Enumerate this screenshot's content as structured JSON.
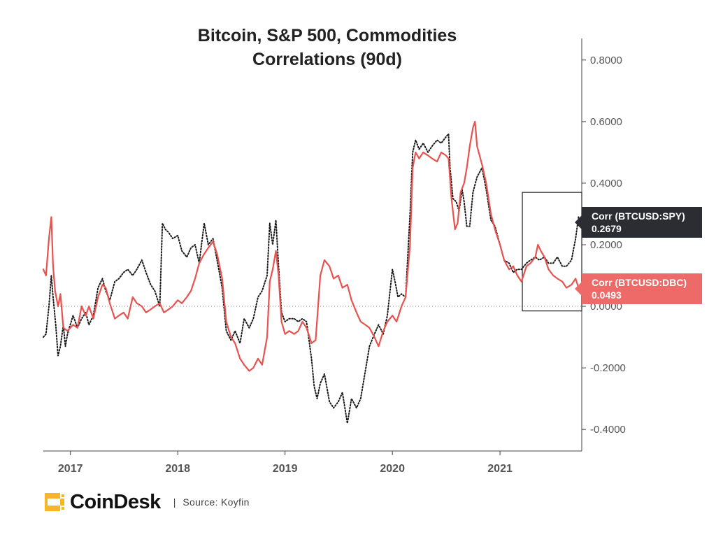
{
  "brand": {
    "name": "CoinDesk",
    "separator": "|",
    "source": "Source: Koyfin",
    "accent": "#f7b52c"
  },
  "chart_data": {
    "type": "line",
    "title_line1": "Bitcoin, S&P 500, Commodities",
    "title_line2": "Correlations (90d)",
    "xlabel": "",
    "ylabel": "",
    "x_range": [
      "2016-10-01",
      "2021-10-06"
    ],
    "ylim": [
      -0.47,
      0.87
    ],
    "y_ticks": [
      "0.8000",
      "0.6000",
      "0.4000",
      "0.2000",
      "0.0000",
      "-0.2000",
      "-0.4000"
    ],
    "x_ticks": [
      "2017",
      "2018",
      "2019",
      "2020",
      "2021"
    ],
    "grid": false,
    "zero_line": "dotted",
    "highlight_box": {
      "x_start": "2021-03-18",
      "x_end": "2021-10-06",
      "y_low": -0.015,
      "y_high": 0.37
    },
    "series": [
      {
        "name": "Corr (BTCUSD:SPY)",
        "color": "#1a1a1a",
        "style": "dotted",
        "last_value": "0.2679",
        "points": [
          [
            "2016-10-01",
            -0.1
          ],
          [
            "2016-10-10",
            -0.09
          ],
          [
            "2016-10-20",
            0.0
          ],
          [
            "2016-10-28",
            0.1
          ],
          [
            "2016-11-03",
            0.03
          ],
          [
            "2016-11-12",
            -0.06
          ],
          [
            "2016-11-20",
            -0.16
          ],
          [
            "2016-11-28",
            -0.13
          ],
          [
            "2016-12-08",
            -0.06
          ],
          [
            "2016-12-15",
            -0.13
          ],
          [
            "2016-12-22",
            -0.09
          ],
          [
            "2017-01-10",
            -0.03
          ],
          [
            "2017-01-25",
            -0.07
          ],
          [
            "2017-02-08",
            -0.04
          ],
          [
            "2017-02-22",
            -0.02
          ],
          [
            "2017-03-05",
            -0.06
          ],
          [
            "2017-03-20",
            -0.03
          ],
          [
            "2017-04-05",
            0.06
          ],
          [
            "2017-04-20",
            0.09
          ],
          [
            "2017-05-01",
            0.05
          ],
          [
            "2017-05-15",
            0.02
          ],
          [
            "2017-06-01",
            0.08
          ],
          [
            "2017-06-15",
            0.09
          ],
          [
            "2017-07-01",
            0.11
          ],
          [
            "2017-07-15",
            0.12
          ],
          [
            "2017-08-01",
            0.1
          ],
          [
            "2017-08-15",
            0.12
          ],
          [
            "2017-09-01",
            0.15
          ],
          [
            "2017-09-15",
            0.11
          ],
          [
            "2017-10-01",
            0.07
          ],
          [
            "2017-10-15",
            0.05
          ],
          [
            "2017-11-01",
            0.0
          ],
          [
            "2017-11-10",
            0.27
          ],
          [
            "2017-11-20",
            0.25
          ],
          [
            "2017-12-01",
            0.24
          ],
          [
            "2017-12-15",
            0.22
          ],
          [
            "2018-01-01",
            0.23
          ],
          [
            "2018-01-15",
            0.18
          ],
          [
            "2018-02-01",
            0.16
          ],
          [
            "2018-02-15",
            0.19
          ],
          [
            "2018-03-01",
            0.2
          ],
          [
            "2018-03-15",
            0.14
          ],
          [
            "2018-04-01",
            0.27
          ],
          [
            "2018-04-15",
            0.2
          ],
          [
            "2018-05-01",
            0.22
          ],
          [
            "2018-05-15",
            0.15
          ],
          [
            "2018-06-01",
            0.06
          ],
          [
            "2018-06-15",
            -0.08
          ],
          [
            "2018-07-01",
            -0.11
          ],
          [
            "2018-07-15",
            -0.08
          ],
          [
            "2018-08-01",
            -0.12
          ],
          [
            "2018-08-15",
            -0.04
          ],
          [
            "2018-09-01",
            -0.07
          ],
          [
            "2018-09-15",
            -0.04
          ],
          [
            "2018-10-01",
            0.03
          ],
          [
            "2018-10-15",
            0.05
          ],
          [
            "2018-11-01",
            0.1
          ],
          [
            "2018-11-10",
            0.27
          ],
          [
            "2018-11-20",
            0.2
          ],
          [
            "2018-12-01",
            0.28
          ],
          [
            "2018-12-10",
            0.13
          ],
          [
            "2018-12-20",
            -0.02
          ],
          [
            "2019-01-01",
            -0.05
          ],
          [
            "2019-01-15",
            -0.04
          ],
          [
            "2019-02-01",
            -0.04
          ],
          [
            "2019-02-15",
            -0.05
          ],
          [
            "2019-03-01",
            -0.04
          ],
          [
            "2019-03-15",
            -0.05
          ],
          [
            "2019-04-01",
            -0.17
          ],
          [
            "2019-04-10",
            -0.26
          ],
          [
            "2019-04-20",
            -0.3
          ],
          [
            "2019-05-01",
            -0.25
          ],
          [
            "2019-05-15",
            -0.22
          ],
          [
            "2019-06-01",
            -0.31
          ],
          [
            "2019-06-15",
            -0.33
          ],
          [
            "2019-07-01",
            -0.31
          ],
          [
            "2019-07-15",
            -0.28
          ],
          [
            "2019-08-01",
            -0.38
          ],
          [
            "2019-08-15",
            -0.3
          ],
          [
            "2019-09-01",
            -0.33
          ],
          [
            "2019-09-15",
            -0.3
          ],
          [
            "2019-10-01",
            -0.21
          ],
          [
            "2019-10-15",
            -0.13
          ],
          [
            "2019-11-01",
            -0.09
          ],
          [
            "2019-11-15",
            -0.06
          ],
          [
            "2019-12-01",
            -0.09
          ],
          [
            "2019-12-15",
            -0.03
          ],
          [
            "2020-01-01",
            0.12
          ],
          [
            "2020-01-10",
            0.08
          ],
          [
            "2020-01-20",
            0.03
          ],
          [
            "2020-02-01",
            0.04
          ],
          [
            "2020-02-15",
            0.03
          ],
          [
            "2020-03-01",
            0.3
          ],
          [
            "2020-03-10",
            0.5
          ],
          [
            "2020-03-20",
            0.54
          ],
          [
            "2020-04-01",
            0.51
          ],
          [
            "2020-04-15",
            0.53
          ],
          [
            "2020-05-01",
            0.5
          ],
          [
            "2020-05-15",
            0.52
          ],
          [
            "2020-06-01",
            0.54
          ],
          [
            "2020-06-15",
            0.53
          ],
          [
            "2020-07-01",
            0.55
          ],
          [
            "2020-07-10",
            0.56
          ],
          [
            "2020-07-15",
            0.45
          ],
          [
            "2020-07-25",
            0.35
          ],
          [
            "2020-08-05",
            0.34
          ],
          [
            "2020-08-15",
            0.31
          ],
          [
            "2020-08-25",
            0.38
          ],
          [
            "2020-09-01",
            0.34
          ],
          [
            "2020-09-10",
            0.26
          ],
          [
            "2020-09-20",
            0.26
          ],
          [
            "2020-10-01",
            0.37
          ],
          [
            "2020-10-15",
            0.42
          ],
          [
            "2020-11-01",
            0.45
          ],
          [
            "2020-11-15",
            0.38
          ],
          [
            "2020-12-01",
            0.28
          ],
          [
            "2020-12-15",
            0.26
          ],
          [
            "2021-01-01",
            0.2
          ],
          [
            "2021-01-15",
            0.15
          ],
          [
            "2021-02-01",
            0.14
          ],
          [
            "2021-02-15",
            0.11
          ],
          [
            "2021-03-01",
            0.12
          ],
          [
            "2021-03-15",
            0.12
          ],
          [
            "2021-04-01",
            0.14
          ],
          [
            "2021-04-15",
            0.15
          ],
          [
            "2021-05-01",
            0.16
          ],
          [
            "2021-05-15",
            0.15
          ],
          [
            "2021-06-01",
            0.16
          ],
          [
            "2021-06-15",
            0.14
          ],
          [
            "2021-07-01",
            0.14
          ],
          [
            "2021-07-15",
            0.16
          ],
          [
            "2021-08-01",
            0.13
          ],
          [
            "2021-08-15",
            0.13
          ],
          [
            "2021-09-01",
            0.15
          ],
          [
            "2021-09-15",
            0.22
          ],
          [
            "2021-09-25",
            0.29
          ],
          [
            "2021-10-01",
            0.2679
          ]
        ]
      },
      {
        "name": "Corr (BTCUSD:DBC)",
        "color": "#e8524f",
        "style": "solid",
        "last_value": "0.0493",
        "points": [
          [
            "2016-10-01",
            0.12
          ],
          [
            "2016-10-10",
            0.1
          ],
          [
            "2016-10-20",
            0.22
          ],
          [
            "2016-10-28",
            0.29
          ],
          [
            "2016-11-03",
            0.13
          ],
          [
            "2016-11-10",
            0.05
          ],
          [
            "2016-11-20",
            0.0
          ],
          [
            "2016-11-28",
            0.04
          ],
          [
            "2016-12-08",
            -0.07
          ],
          [
            "2016-12-22",
            -0.08
          ],
          [
            "2017-01-10",
            -0.06
          ],
          [
            "2017-01-25",
            -0.07
          ],
          [
            "2017-02-08",
            0.0
          ],
          [
            "2017-02-22",
            -0.03
          ],
          [
            "2017-03-05",
            0.0
          ],
          [
            "2017-03-20",
            -0.04
          ],
          [
            "2017-04-05",
            0.03
          ],
          [
            "2017-04-20",
            0.07
          ],
          [
            "2017-05-01",
            0.06
          ],
          [
            "2017-05-15",
            0.01
          ],
          [
            "2017-06-01",
            -0.04
          ],
          [
            "2017-06-15",
            -0.03
          ],
          [
            "2017-07-01",
            -0.02
          ],
          [
            "2017-07-15",
            -0.04
          ],
          [
            "2017-08-01",
            0.03
          ],
          [
            "2017-08-15",
            0.01
          ],
          [
            "2017-09-01",
            0.0
          ],
          [
            "2017-09-15",
            -0.02
          ],
          [
            "2017-10-01",
            -0.01
          ],
          [
            "2017-10-15",
            0.0
          ],
          [
            "2017-11-01",
            0.01
          ],
          [
            "2017-11-15",
            -0.02
          ],
          [
            "2017-12-01",
            -0.01
          ],
          [
            "2017-12-15",
            0.0
          ],
          [
            "2018-01-01",
            0.02
          ],
          [
            "2018-01-15",
            0.01
          ],
          [
            "2018-02-01",
            0.03
          ],
          [
            "2018-02-15",
            0.05
          ],
          [
            "2018-03-01",
            0.09
          ],
          [
            "2018-03-15",
            0.14
          ],
          [
            "2018-04-01",
            0.17
          ],
          [
            "2018-04-15",
            0.19
          ],
          [
            "2018-05-01",
            0.21
          ],
          [
            "2018-05-15",
            0.17
          ],
          [
            "2018-06-01",
            0.09
          ],
          [
            "2018-06-15",
            -0.05
          ],
          [
            "2018-07-01",
            -0.1
          ],
          [
            "2018-07-15",
            -0.12
          ],
          [
            "2018-08-01",
            -0.17
          ],
          [
            "2018-08-15",
            -0.19
          ],
          [
            "2018-09-01",
            -0.21
          ],
          [
            "2018-09-15",
            -0.2
          ],
          [
            "2018-10-01",
            -0.17
          ],
          [
            "2018-10-15",
            -0.19
          ],
          [
            "2018-11-01",
            -0.1
          ],
          [
            "2018-11-10",
            0.08
          ],
          [
            "2018-11-20",
            0.12
          ],
          [
            "2018-12-01",
            0.18
          ],
          [
            "2018-12-10",
            0.1
          ],
          [
            "2018-12-20",
            -0.05
          ],
          [
            "2019-01-01",
            -0.09
          ],
          [
            "2019-01-15",
            -0.08
          ],
          [
            "2019-02-01",
            -0.09
          ],
          [
            "2019-02-15",
            -0.08
          ],
          [
            "2019-03-01",
            -0.05
          ],
          [
            "2019-03-15",
            -0.07
          ],
          [
            "2019-04-01",
            -0.12
          ],
          [
            "2019-04-15",
            -0.11
          ],
          [
            "2019-05-01",
            0.1
          ],
          [
            "2019-05-15",
            0.15
          ],
          [
            "2019-06-01",
            0.13
          ],
          [
            "2019-06-15",
            0.09
          ],
          [
            "2019-07-01",
            0.1
          ],
          [
            "2019-07-15",
            0.06
          ],
          [
            "2019-08-01",
            0.07
          ],
          [
            "2019-08-15",
            0.02
          ],
          [
            "2019-09-01",
            -0.02
          ],
          [
            "2019-09-15",
            -0.05
          ],
          [
            "2019-10-01",
            -0.06
          ],
          [
            "2019-10-15",
            -0.07
          ],
          [
            "2019-11-01",
            -0.1
          ],
          [
            "2019-11-15",
            -0.13
          ],
          [
            "2019-12-01",
            -0.08
          ],
          [
            "2019-12-15",
            -0.05
          ],
          [
            "2020-01-01",
            -0.03
          ],
          [
            "2020-01-15",
            -0.05
          ],
          [
            "2020-02-01",
            0.0
          ],
          [
            "2020-02-15",
            0.03
          ],
          [
            "2020-03-01",
            0.2
          ],
          [
            "2020-03-10",
            0.45
          ],
          [
            "2020-03-20",
            0.5
          ],
          [
            "2020-04-01",
            0.48
          ],
          [
            "2020-04-15",
            0.5
          ],
          [
            "2020-05-01",
            0.49
          ],
          [
            "2020-05-15",
            0.48
          ],
          [
            "2020-06-01",
            0.47
          ],
          [
            "2020-06-15",
            0.5
          ],
          [
            "2020-07-01",
            0.49
          ],
          [
            "2020-07-10",
            0.48
          ],
          [
            "2020-07-20",
            0.35
          ],
          [
            "2020-08-01",
            0.25
          ],
          [
            "2020-08-10",
            0.27
          ],
          [
            "2020-08-20",
            0.37
          ],
          [
            "2020-09-01",
            0.4
          ],
          [
            "2020-09-10",
            0.45
          ],
          [
            "2020-09-20",
            0.52
          ],
          [
            "2020-10-01",
            0.58
          ],
          [
            "2020-10-08",
            0.6
          ],
          [
            "2020-10-15",
            0.52
          ],
          [
            "2020-11-01",
            0.46
          ],
          [
            "2020-11-15",
            0.4
          ],
          [
            "2020-12-01",
            0.3
          ],
          [
            "2020-12-15",
            0.25
          ],
          [
            "2021-01-01",
            0.2
          ],
          [
            "2021-01-15",
            0.15
          ],
          [
            "2021-02-01",
            0.12
          ],
          [
            "2021-02-15",
            0.13
          ],
          [
            "2021-03-01",
            0.1
          ],
          [
            "2021-03-15",
            0.08
          ],
          [
            "2021-04-01",
            0.13
          ],
          [
            "2021-04-15",
            0.14
          ],
          [
            "2021-05-01",
            0.16
          ],
          [
            "2021-05-10",
            0.2
          ],
          [
            "2021-05-20",
            0.18
          ],
          [
            "2021-06-01",
            0.16
          ],
          [
            "2021-06-15",
            0.12
          ],
          [
            "2021-07-01",
            0.1
          ],
          [
            "2021-07-15",
            0.09
          ],
          [
            "2021-08-01",
            0.08
          ],
          [
            "2021-08-15",
            0.06
          ],
          [
            "2021-09-01",
            0.07
          ],
          [
            "2021-09-15",
            0.09
          ],
          [
            "2021-09-25",
            0.06
          ],
          [
            "2021-10-01",
            0.0493
          ]
        ]
      }
    ]
  }
}
